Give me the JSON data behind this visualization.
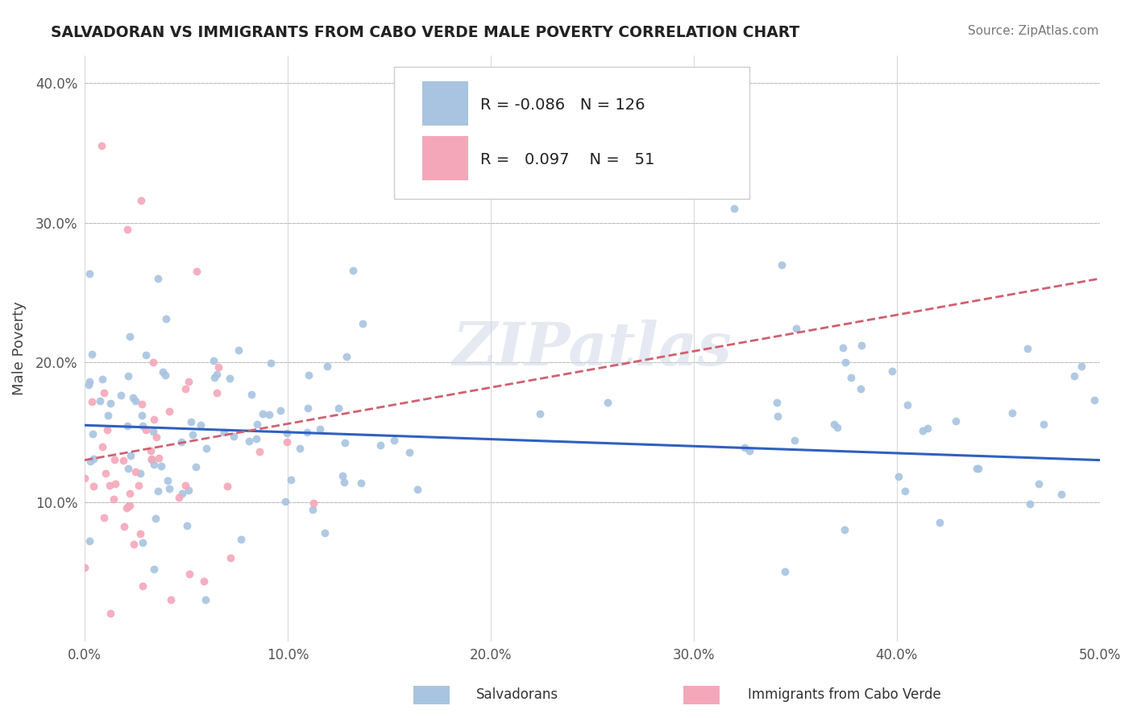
{
  "title": "SALVADORAN VS IMMIGRANTS FROM CABO VERDE MALE POVERTY CORRELATION CHART",
  "source": "Source: ZipAtlas.com",
  "ylabel": "Male Poverty",
  "xlim": [
    0.0,
    0.5
  ],
  "ylim": [
    0.0,
    0.42
  ],
  "legend_R1": "-0.086",
  "legend_N1": "126",
  "legend_R2": "0.097",
  "legend_N2": "51",
  "color_blue": "#a8c4e0",
  "color_pink": "#f4a7b9",
  "line_color_blue": "#3060c0",
  "line_color_pink": "#d06070",
  "watermark": "ZIPatlas",
  "blue_line_x0": 0.0,
  "blue_line_y0": 0.155,
  "blue_line_x1": 0.5,
  "blue_line_y1": 0.13,
  "pink_line_x0": 0.0,
  "pink_line_y0": 0.13,
  "pink_line_x1": 0.5,
  "pink_line_y1": 0.26
}
